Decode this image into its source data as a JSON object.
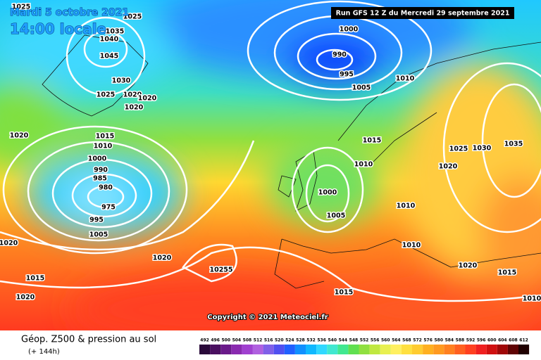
{
  "header": {
    "date": "Mardi 5 octobre 2021",
    "time": "14:00 locale",
    "run": "Run GFS 12 Z du Mercredi 29 septembre 2021"
  },
  "copyright": "Copyright © 2021 Meteociel.fr",
  "legend": {
    "title": "Géop. Z500 & pression au sol",
    "subtitle": "(+ 144h)",
    "ticks": [
      492,
      496,
      500,
      504,
      508,
      512,
      516,
      520,
      524,
      528,
      532,
      536,
      540,
      544,
      548,
      552,
      556,
      560,
      564,
      568,
      572,
      576,
      580,
      584,
      588,
      592,
      596,
      600,
      604,
      608,
      612
    ],
    "colors": [
      "#2a0a3a",
      "#4a1060",
      "#6a1a8a",
      "#8a2ab0",
      "#a040d0",
      "#b060e0",
      "#8060e8",
      "#5050f0",
      "#2060ff",
      "#1090ff",
      "#10b8ff",
      "#30d8ff",
      "#40e8d0",
      "#40e890",
      "#60e050",
      "#90e040",
      "#c0e840",
      "#e8f050",
      "#fff060",
      "#ffe040",
      "#ffcc30",
      "#ffb020",
      "#ff9a20",
      "#ff8020",
      "#ff6020",
      "#ff4020",
      "#f02020",
      "#d01010",
      "#a00808",
      "#600404",
      "#200000"
    ]
  },
  "isobar_labels": [
    1025,
    1025,
    1035,
    1040,
    1045,
    1030,
    1025,
    1020,
    1020,
    1020,
    1000,
    990,
    995,
    1005,
    1010,
    1020,
    1015,
    1010,
    1000,
    990,
    985,
    980,
    975,
    995,
    1005,
    1015,
    1010,
    1000,
    1005,
    1025,
    1030,
    1035,
    1020,
    1010,
    1010,
    1020,
    1015,
    1010,
    1020,
    1015,
    1020,
    1020,
    10255,
    1015
  ]
}
